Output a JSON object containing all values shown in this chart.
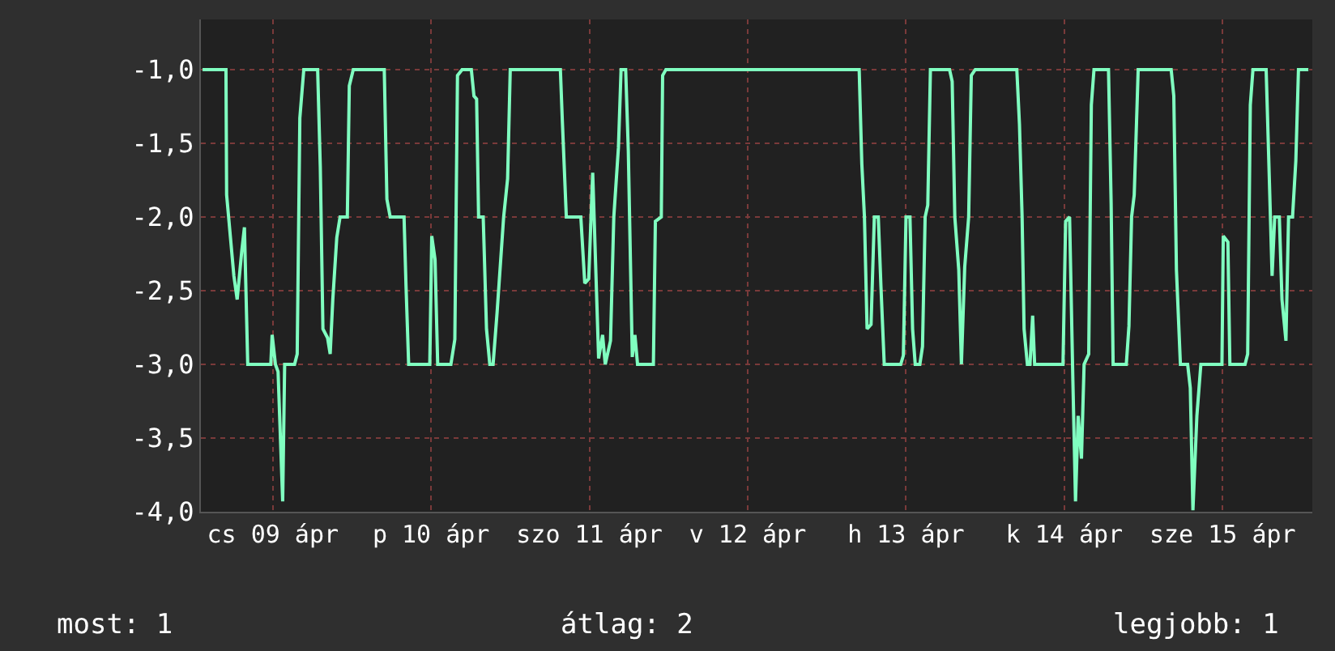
{
  "chart_data": {
    "type": "line",
    "x": [
      "--04-09T01:21",
      "--04-09T04:54",
      "--04-09T05:00",
      "--04-09T06:06",
      "--04-09T06:36",
      "--04-09T07:18",
      "--04-09T07:42",
      "--04-09T08:12",
      "--04-09T11:42",
      "--04-09T11:54",
      "--04-09T12:24",
      "--04-09T12:48",
      "--04-09T13:30",
      "--04-09T13:48",
      "--04-09T15:18",
      "--04-09T15:42",
      "--04-09T16:06",
      "--04-09T16:42",
      "--04-09T18:48",
      "--04-09T19:12",
      "--04-09T19:36",
      "--04-09T20:18",
      "--04-09T20:42",
      "--04-09T21:06",
      "--04-09T21:42",
      "--04-09T22:12",
      "--04-09T23:18",
      "--04-09T23:36",
      "--04-10T00:12",
      "--04-10T04:54",
      "--04-10T05:18",
      "--04-10T05:48",
      "--04-10T07:54",
      "--04-10T08:12",
      "--04-10T08:36",
      "--04-10T11:48",
      "--04-10T12:06",
      "--04-10T12:36",
      "--04-10T13:00",
      "--04-10T15:00",
      "--04-10T15:36",
      "--04-10T16:00",
      "--04-10T16:42",
      "--04-10T18:06",
      "--04-10T18:30",
      "--04-10T18:54",
      "--04-10T19:12",
      "--04-10T19:54",
      "--04-10T20:24",
      "--04-10T20:54",
      "--04-10T21:24",
      "--04-10T22:00",
      "--04-10T23:00",
      "--04-10T23:36",
      "--04-11T00:00",
      "--04-11T07:36",
      "--04-11T07:54",
      "--04-11T08:30",
      "--04-11T10:42",
      "--04-11T11:18",
      "--04-11T11:54",
      "--04-11T12:30",
      "--04-11T13:24",
      "--04-11T14:00",
      "--04-11T14:24",
      "--04-11T15:12",
      "--04-11T15:42",
      "--04-11T16:24",
      "--04-11T16:48",
      "--04-11T17:30",
      "--04-11T17:54",
      "--04-11T18:30",
      "--04-11T18:54",
      "--04-11T19:18",
      "--04-11T21:42",
      "--04-11T22:00",
      "--04-11T22:54",
      "--04-11T23:06",
      "--04-11T23:36",
      "--04-13T04:54",
      "--04-13T05:18",
      "--04-13T05:42",
      "--04-13T06:06",
      "--04-13T06:42",
      "--04-13T07:12",
      "--04-13T07:48",
      "--04-13T08:12",
      "--04-13T08:42",
      "--04-13T11:12",
      "--04-13T11:36",
      "--04-13T12:00",
      "--04-13T12:36",
      "--04-13T13:00",
      "--04-13T13:24",
      "--04-13T14:06",
      "--04-13T14:30",
      "--04-13T14:54",
      "--04-13T15:18",
      "--04-13T15:42",
      "--04-13T18:36",
      "--04-13T19:00",
      "--04-13T19:24",
      "--04-13T20:00",
      "--04-13T20:24",
      "--04-13T20:54",
      "--04-13T21:30",
      "--04-13T21:54",
      "--04-13T22:30",
      "--04-14T04:48",
      "--04-14T05:12",
      "--04-14T05:36",
      "--04-14T05:54",
      "--04-14T06:24",
      "--04-14T06:48",
      "--04-14T07:12",
      "--04-14T07:30",
      "--04-14T11:48",
      "--04-14T12:12",
      "--04-14T12:48",
      "--04-14T13:18",
      "--04-14T13:42",
      "--04-14T14:06",
      "--04-14T14:36",
      "--04-14T15:00",
      "--04-14T15:42",
      "--04-14T16:06",
      "--04-14T16:30",
      "--04-14T18:42",
      "--04-14T19:06",
      "--04-14T19:24",
      "--04-14T21:24",
      "--04-14T21:48",
      "--04-14T22:12",
      "--04-14T22:36",
      "--04-14T23:12",
      "--04-15T04:12",
      "--04-15T04:36",
      "--04-15T05:00",
      "--04-15T05:36",
      "--04-15T06:42",
      "--04-15T07:06",
      "--04-15T07:30",
      "--04-15T08:06",
      "--04-15T08:42",
      "--04-15T11:54",
      "--04-15T12:06",
      "--04-15T12:48",
      "--04-15T13:06",
      "--04-15T15:24",
      "--04-15T15:48",
      "--04-15T16:12",
      "--04-15T16:36",
      "--04-15T18:36",
      "--04-15T19:06",
      "--04-15T19:30",
      "--04-15T19:54",
      "--04-15T20:36",
      "--04-15T21:00",
      "--04-15T21:36",
      "--04-15T22:00",
      "--04-15T22:36",
      "--04-15T23:06",
      "--04-15T23:30",
      "--04-16T01:00"
    ],
    "series": [
      {
        "color": "#80ffc0",
        "values": [
          -1.0,
          -1.0,
          -1.85,
          -2.4,
          -2.56,
          -2.23,
          -2.07,
          -3.0,
          -3.0,
          -2.8,
          -3.0,
          -3.05,
          -3.93,
          -3.0,
          -3.0,
          -2.93,
          -1.33,
          -1.0,
          -1.0,
          -1.66,
          -2.76,
          -2.82,
          -2.93,
          -2.56,
          -2.14,
          -2.0,
          -2.0,
          -1.11,
          -1.0,
          -1.0,
          -1.88,
          -2.0,
          -2.0,
          -2.47,
          -3.0,
          -3.0,
          -2.13,
          -2.29,
          -3.0,
          -3.0,
          -2.83,
          -1.04,
          -1.0,
          -1.0,
          -1.18,
          -1.2,
          -2.0,
          -2.0,
          -2.76,
          -3.0,
          -3.0,
          -2.65,
          -2.0,
          -1.74,
          -1.0,
          -1.0,
          -1.35,
          -2.0,
          -2.0,
          -2.45,
          -2.42,
          -1.7,
          -2.96,
          -2.8,
          -3.0,
          -2.84,
          -2.0,
          -1.53,
          -1.0,
          -1.0,
          -1.55,
          -2.95,
          -2.8,
          -3.0,
          -3.0,
          -2.03,
          -2.0,
          -1.04,
          -1.0,
          -1.0,
          -1.64,
          -2.0,
          -2.76,
          -2.73,
          -2.0,
          -2.0,
          -2.47,
          -3.0,
          -3.0,
          -2.94,
          -2.0,
          -2.0,
          -2.76,
          -3.0,
          -3.0,
          -2.88,
          -2.0,
          -1.92,
          -1.0,
          -1.0,
          -1.08,
          -2.0,
          -2.36,
          -3.0,
          -2.34,
          -2.0,
          -1.04,
          -1.0,
          -1.0,
          -1.37,
          -2.0,
          -2.76,
          -3.0,
          -3.0,
          -2.67,
          -3.0,
          -3.0,
          -2.03,
          -2.0,
          -3.11,
          -3.93,
          -3.35,
          -3.64,
          -3.0,
          -2.93,
          -1.24,
          -1.0,
          -1.0,
          -1.91,
          -3.0,
          -3.0,
          -2.74,
          -2.0,
          -1.85,
          -1.0,
          -1.0,
          -1.18,
          -2.36,
          -3.0,
          -3.0,
          -3.16,
          -3.99,
          -3.35,
          -3.0,
          -3.0,
          -2.13,
          -2.17,
          -3.0,
          -3.0,
          -2.93,
          -1.24,
          -1.0,
          -1.0,
          -1.77,
          -2.4,
          -2.0,
          -2.0,
          -2.56,
          -2.84,
          -2.0,
          -2.0,
          -1.62,
          -1.0,
          -1.0
        ]
      }
    ],
    "xlim": [
      "--04-09T01:06",
      "--04-16T01:36"
    ],
    "xticks": [
      {
        "value": "--04-09T12:00",
        "label": "cs 09 ápr"
      },
      {
        "value": "--04-10T12:00",
        "label": "p 10 ápr"
      },
      {
        "value": "--04-11T12:00",
        "label": "szo 11 ápr"
      },
      {
        "value": "--04-12T12:00",
        "label": "v 12 ápr"
      },
      {
        "value": "--04-13T12:00",
        "label": "h 13 ápr"
      },
      {
        "value": "--04-14T12:00",
        "label": "k 14 ápr"
      },
      {
        "value": "--04-15T12:00",
        "label": "sze 15 ápr"
      }
    ],
    "ylim": [
      -4.0,
      -0.66
    ],
    "yticks": [
      {
        "value": -4.0,
        "label": "-4,0"
      },
      {
        "value": -3.5,
        "label": "-3,5"
      },
      {
        "value": -3.0,
        "label": "-3,0"
      },
      {
        "value": -2.5,
        "label": "-2,5"
      },
      {
        "value": -2.0,
        "label": "-2,0"
      },
      {
        "value": -1.5,
        "label": "-1,5"
      },
      {
        "value": -1.0,
        "label": "-1,0"
      }
    ],
    "grid": true,
    "marker": "none",
    "line_style": "solid",
    "annotations": [
      "most: 1",
      "átlag: 2",
      "legjobb: 1"
    ]
  }
}
